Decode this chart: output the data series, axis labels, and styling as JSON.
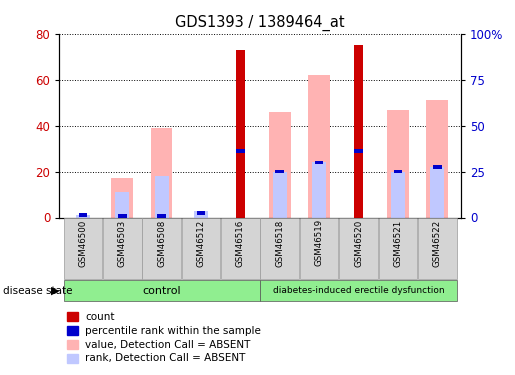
{
  "title": "GDS1393 / 1389464_at",
  "samples": [
    "GSM46500",
    "GSM46503",
    "GSM46508",
    "GSM46512",
    "GSM46516",
    "GSM46518",
    "GSM46519",
    "GSM46520",
    "GSM46521",
    "GSM46522"
  ],
  "count_values": [
    0,
    0,
    0,
    0,
    73,
    0,
    0,
    75,
    0,
    0
  ],
  "percentile_rank": [
    1,
    0,
    0,
    2,
    29,
    20,
    24,
    29,
    20,
    22
  ],
  "value_absent": [
    0,
    17,
    39,
    0,
    0,
    46,
    62,
    0,
    47,
    51
  ],
  "rank_absent": [
    1,
    11,
    18,
    3,
    0,
    20,
    24,
    0,
    20,
    22
  ],
  "control_indices": [
    0,
    1,
    2,
    3,
    4
  ],
  "diabetes_indices": [
    5,
    6,
    7,
    8,
    9
  ],
  "ylim_left": [
    0,
    80
  ],
  "ylim_right": [
    0,
    100
  ],
  "yticks_left": [
    0,
    20,
    40,
    60,
    80
  ],
  "yticks_right": [
    0,
    25,
    50,
    75,
    100
  ],
  "ytick_labels_right": [
    "0",
    "25",
    "50",
    "75",
    "100%"
  ],
  "color_count": "#cc0000",
  "color_percentile": "#0000cc",
  "color_value_absent": "#ffb3b3",
  "color_rank_absent": "#c0c8ff",
  "color_group": "#90EE90",
  "color_xlabels_bg": "#d4d4d4",
  "tick_label_color_left": "#cc0000",
  "tick_label_color_right": "#0000cc",
  "legend_items": [
    {
      "label": "count",
      "color": "#cc0000"
    },
    {
      "label": "percentile rank within the sample",
      "color": "#0000cc"
    },
    {
      "label": "value, Detection Call = ABSENT",
      "color": "#ffb3b3"
    },
    {
      "label": "rank, Detection Call = ABSENT",
      "color": "#c0c8ff"
    }
  ],
  "disease_state_label": "disease state"
}
